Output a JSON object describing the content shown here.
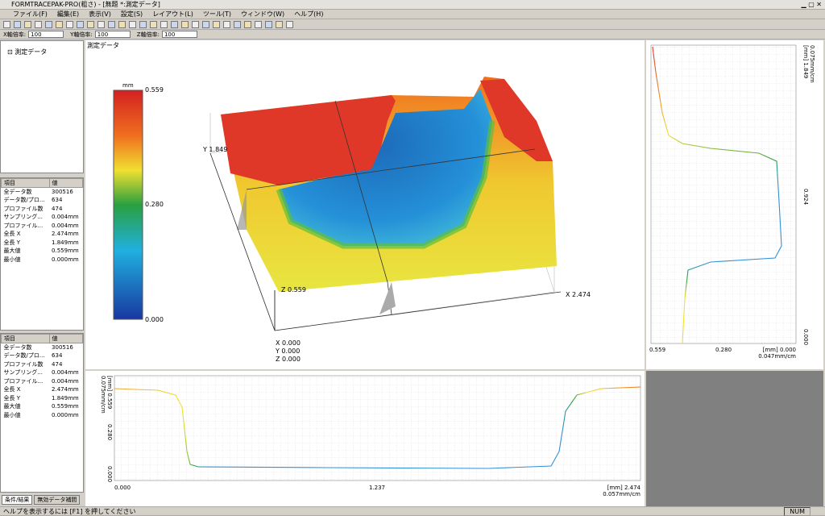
{
  "window": {
    "title": "FORMTRACEPAK-PRO(粗さ) - [無題 *:測定データ]"
  },
  "menu": [
    "ファイル(F)",
    "編集(E)",
    "表示(V)",
    "設定(S)",
    "レイアウト(L)",
    "ツール(T)",
    "ウィンドウ(W)",
    "ヘルプ(H)"
  ],
  "scale_bar": [
    {
      "label": "X軸倍率:",
      "value": "100"
    },
    {
      "label": "Y軸倍率:",
      "value": "100"
    },
    {
      "label": "Z軸倍率:",
      "value": "100"
    }
  ],
  "tree": {
    "item": "測定データ"
  },
  "info_tables": [
    {
      "header": [
        "項目",
        "値"
      ],
      "rows": [
        [
          "全データ数",
          "300516"
        ],
        [
          "データ数/プロ...",
          "634"
        ],
        [
          "プロファイル数",
          "474"
        ],
        [
          "サンプリング...",
          "0.004mm"
        ],
        [
          "プロファイル...",
          "0.004mm"
        ],
        [
          "全長 X",
          "2.474mm"
        ],
        [
          "全長 Y",
          "1.849mm"
        ],
        [
          "最大値",
          "0.559mm"
        ],
        [
          "最小値",
          "0.000mm"
        ]
      ]
    },
    {
      "header": [
        "項目",
        "値"
      ],
      "rows": [
        [
          "全データ数",
          "300516"
        ],
        [
          "データ数/プロ...",
          "634"
        ],
        [
          "プロファイル数",
          "474"
        ],
        [
          "サンプリング...",
          "0.004mm"
        ],
        [
          "プロファイル...",
          "0.004mm"
        ],
        [
          "全長 X",
          "2.474mm"
        ],
        [
          "全長 Y",
          "1.849mm"
        ],
        [
          "最大値",
          "0.559mm"
        ],
        [
          "最小値",
          "0.000mm"
        ]
      ]
    }
  ],
  "tabs": [
    "条件/結果",
    "無効データ補間"
  ],
  "view3d": {
    "title": "測定データ",
    "colorbar_unit": "mm",
    "colorbar_labels": [
      "0.559",
      "0.280",
      "0.000"
    ],
    "axis_labels": {
      "y_end": "Y 1.849",
      "z_end": "Z 0.559",
      "x_end": "X 2.474",
      "origin": [
        "X 0.000",
        "Y 0.000",
        "Z 0.000"
      ]
    }
  },
  "profile_right": {
    "y_labels": [
      "[mm] 1.849",
      "0.924",
      "0.000"
    ],
    "y_scale": "0.075mm/cm",
    "x_labels": [
      "0.559",
      "0.280",
      "[mm] 0.000"
    ],
    "x_scale": "0.047mm/cm"
  },
  "profile_bottom": {
    "y_labels": [
      "[mm] 0.559",
      "0.280",
      "0.000"
    ],
    "y_scale": "0.075mm/cm",
    "x_labels": [
      "0.000",
      "1.237",
      "[mm] 2.474"
    ],
    "x_scale": "0.057mm/cm"
  },
  "status": {
    "help": "ヘルプを表示するには [F1] を押してください",
    "num": "NUM"
  }
}
